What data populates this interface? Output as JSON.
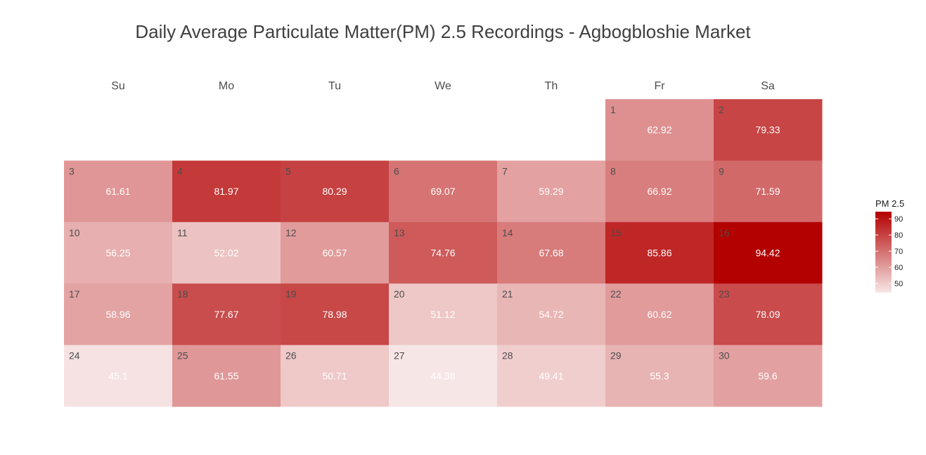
{
  "chart_data": {
    "type": "heatmap",
    "subtype": "calendar",
    "title": "Daily Average Particulate Matter(PM) 2.5 Recordings - Agbogbloshie Market",
    "weekdays": [
      "Su",
      "Mo",
      "Tu",
      "We",
      "Th",
      "Fr",
      "Sa"
    ],
    "first_weekday_index": 5,
    "days": [
      {
        "day": 1,
        "value": 62.92,
        "label": "62.92"
      },
      {
        "day": 2,
        "value": 79.33,
        "label": "79.33"
      },
      {
        "day": 3,
        "value": 61.61,
        "label": "61.61"
      },
      {
        "day": 4,
        "value": 81.97,
        "label": "81.97"
      },
      {
        "day": 5,
        "value": 80.29,
        "label": "80.29"
      },
      {
        "day": 6,
        "value": 69.07,
        "label": "69.07"
      },
      {
        "day": 7,
        "value": 59.29,
        "label": "59.29"
      },
      {
        "day": 8,
        "value": 66.92,
        "label": "66.92"
      },
      {
        "day": 9,
        "value": 71.59,
        "label": "71.59"
      },
      {
        "day": 10,
        "value": 56.25,
        "label": "56.25"
      },
      {
        "day": 11,
        "value": 52.02,
        "label": "52.02"
      },
      {
        "day": 12,
        "value": 60.57,
        "label": "60.57"
      },
      {
        "day": 13,
        "value": 74.76,
        "label": "74.76"
      },
      {
        "day": 14,
        "value": 67.68,
        "label": "67.68"
      },
      {
        "day": 15,
        "value": 85.86,
        "label": "85.86"
      },
      {
        "day": 16,
        "value": 94.42,
        "label": "94.42"
      },
      {
        "day": 17,
        "value": 58.96,
        "label": "58.96"
      },
      {
        "day": 18,
        "value": 77.67,
        "label": "77.67"
      },
      {
        "day": 19,
        "value": 78.98,
        "label": "78.98"
      },
      {
        "day": 20,
        "value": 51.12,
        "label": "51.12"
      },
      {
        "day": 21,
        "value": 54.72,
        "label": "54.72"
      },
      {
        "day": 22,
        "value": 60.62,
        "label": "60.62"
      },
      {
        "day": 23,
        "value": 78.09,
        "label": "78.09"
      },
      {
        "day": 24,
        "value": 45.1,
        "label": "45.1"
      },
      {
        "day": 25,
        "value": 61.55,
        "label": "61.55"
      },
      {
        "day": 26,
        "value": 50.71,
        "label": "50.71"
      },
      {
        "day": 27,
        "value": 44.38,
        "label": "44.38"
      },
      {
        "day": 28,
        "value": 49.41,
        "label": "49.41"
      },
      {
        "day": 29,
        "value": 55.3,
        "label": "55.3"
      },
      {
        "day": 30,
        "value": 59.6,
        "label": "59.6"
      }
    ],
    "color_scale": {
      "low": "#ffffff",
      "high": "#b30000",
      "domain": [
        44.38,
        94.42
      ]
    },
    "legend": {
      "title": "PM 2.5",
      "ticks": [
        50,
        60,
        70,
        80,
        90
      ],
      "placement": "right"
    }
  }
}
